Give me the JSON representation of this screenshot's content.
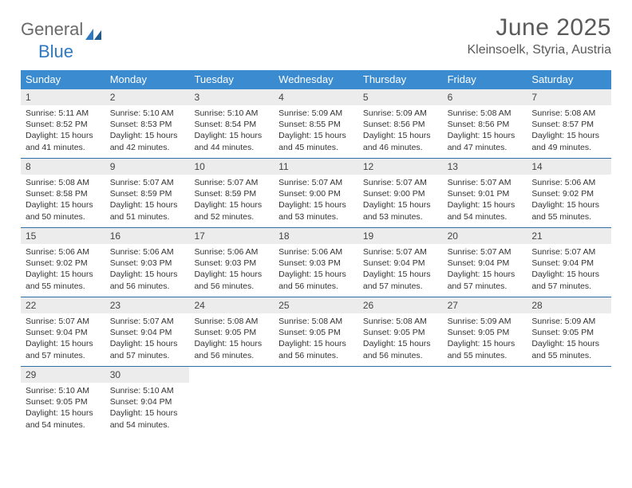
{
  "brand": {
    "text1": "General",
    "text2": "Blue",
    "text_color1": "#6a6a6a",
    "text_color2": "#2f78c2",
    "icon_color": "#2f78c2"
  },
  "title": "June 2025",
  "location": "Kleinsoelk, Styria, Austria",
  "colors": {
    "header_bg": "#3b8bd0",
    "header_text": "#ffffff",
    "daynum_bg": "#ececec",
    "week_border": "#2f6fa8",
    "body_text": "#333333",
    "title_text": "#5a5a5a",
    "background": "#ffffff"
  },
  "fonts": {
    "title_size_pt": 30,
    "location_size_pt": 16,
    "dow_size_pt": 13,
    "daynum_size_pt": 12,
    "cell_size_pt": 10.5
  },
  "days_of_week": [
    "Sunday",
    "Monday",
    "Tuesday",
    "Wednesday",
    "Thursday",
    "Friday",
    "Saturday"
  ],
  "weeks": [
    [
      {
        "n": "1",
        "sunrise": "5:11 AM",
        "sunset": "8:52 PM",
        "daylight": "15 hours and 41 minutes."
      },
      {
        "n": "2",
        "sunrise": "5:10 AM",
        "sunset": "8:53 PM",
        "daylight": "15 hours and 42 minutes."
      },
      {
        "n": "3",
        "sunrise": "5:10 AM",
        "sunset": "8:54 PM",
        "daylight": "15 hours and 44 minutes."
      },
      {
        "n": "4",
        "sunrise": "5:09 AM",
        "sunset": "8:55 PM",
        "daylight": "15 hours and 45 minutes."
      },
      {
        "n": "5",
        "sunrise": "5:09 AM",
        "sunset": "8:56 PM",
        "daylight": "15 hours and 46 minutes."
      },
      {
        "n": "6",
        "sunrise": "5:08 AM",
        "sunset": "8:56 PM",
        "daylight": "15 hours and 47 minutes."
      },
      {
        "n": "7",
        "sunrise": "5:08 AM",
        "sunset": "8:57 PM",
        "daylight": "15 hours and 49 minutes."
      }
    ],
    [
      {
        "n": "8",
        "sunrise": "5:08 AM",
        "sunset": "8:58 PM",
        "daylight": "15 hours and 50 minutes."
      },
      {
        "n": "9",
        "sunrise": "5:07 AM",
        "sunset": "8:59 PM",
        "daylight": "15 hours and 51 minutes."
      },
      {
        "n": "10",
        "sunrise": "5:07 AM",
        "sunset": "8:59 PM",
        "daylight": "15 hours and 52 minutes."
      },
      {
        "n": "11",
        "sunrise": "5:07 AM",
        "sunset": "9:00 PM",
        "daylight": "15 hours and 53 minutes."
      },
      {
        "n": "12",
        "sunrise": "5:07 AM",
        "sunset": "9:00 PM",
        "daylight": "15 hours and 53 minutes."
      },
      {
        "n": "13",
        "sunrise": "5:07 AM",
        "sunset": "9:01 PM",
        "daylight": "15 hours and 54 minutes."
      },
      {
        "n": "14",
        "sunrise": "5:06 AM",
        "sunset": "9:02 PM",
        "daylight": "15 hours and 55 minutes."
      }
    ],
    [
      {
        "n": "15",
        "sunrise": "5:06 AM",
        "sunset": "9:02 PM",
        "daylight": "15 hours and 55 minutes."
      },
      {
        "n": "16",
        "sunrise": "5:06 AM",
        "sunset": "9:03 PM",
        "daylight": "15 hours and 56 minutes."
      },
      {
        "n": "17",
        "sunrise": "5:06 AM",
        "sunset": "9:03 PM",
        "daylight": "15 hours and 56 minutes."
      },
      {
        "n": "18",
        "sunrise": "5:06 AM",
        "sunset": "9:03 PM",
        "daylight": "15 hours and 56 minutes."
      },
      {
        "n": "19",
        "sunrise": "5:07 AM",
        "sunset": "9:04 PM",
        "daylight": "15 hours and 57 minutes."
      },
      {
        "n": "20",
        "sunrise": "5:07 AM",
        "sunset": "9:04 PM",
        "daylight": "15 hours and 57 minutes."
      },
      {
        "n": "21",
        "sunrise": "5:07 AM",
        "sunset": "9:04 PM",
        "daylight": "15 hours and 57 minutes."
      }
    ],
    [
      {
        "n": "22",
        "sunrise": "5:07 AM",
        "sunset": "9:04 PM",
        "daylight": "15 hours and 57 minutes."
      },
      {
        "n": "23",
        "sunrise": "5:07 AM",
        "sunset": "9:04 PM",
        "daylight": "15 hours and 57 minutes."
      },
      {
        "n": "24",
        "sunrise": "5:08 AM",
        "sunset": "9:05 PM",
        "daylight": "15 hours and 56 minutes."
      },
      {
        "n": "25",
        "sunrise": "5:08 AM",
        "sunset": "9:05 PM",
        "daylight": "15 hours and 56 minutes."
      },
      {
        "n": "26",
        "sunrise": "5:08 AM",
        "sunset": "9:05 PM",
        "daylight": "15 hours and 56 minutes."
      },
      {
        "n": "27",
        "sunrise": "5:09 AM",
        "sunset": "9:05 PM",
        "daylight": "15 hours and 55 minutes."
      },
      {
        "n": "28",
        "sunrise": "5:09 AM",
        "sunset": "9:05 PM",
        "daylight": "15 hours and 55 minutes."
      }
    ],
    [
      {
        "n": "29",
        "sunrise": "5:10 AM",
        "sunset": "9:05 PM",
        "daylight": "15 hours and 54 minutes."
      },
      {
        "n": "30",
        "sunrise": "5:10 AM",
        "sunset": "9:04 PM",
        "daylight": "15 hours and 54 minutes."
      },
      null,
      null,
      null,
      null,
      null
    ]
  ],
  "labels": {
    "sunrise_prefix": "Sunrise: ",
    "sunset_prefix": "Sunset: ",
    "daylight_prefix": "Daylight: "
  }
}
